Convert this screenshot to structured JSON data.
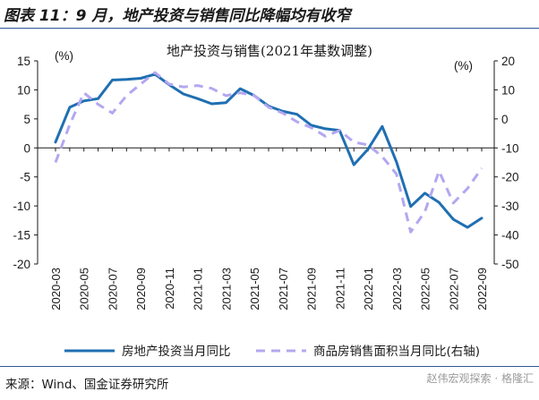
{
  "figure": {
    "title": "图表 11：9 月，地产投资与销售同比降幅均有收窄",
    "source": "来源：Wind、国金证券研究所",
    "watermark": "赵伟宏观探索 · 格隆汇"
  },
  "colors": {
    "series_investment": "#1f6fb2",
    "series_sales": "#b4a7f0",
    "rule": "#2f5597",
    "axis": "#1a1a1a"
  },
  "chart_data": {
    "type": "line",
    "title": "地产投资与销售(2021年基数调整)",
    "left_unit": "(%)",
    "right_unit": "(%)",
    "ylim_left": [
      -20,
      15
    ],
    "ylim_right": [
      -50,
      20
    ],
    "yticks_left": [
      15,
      10,
      5,
      0,
      -5,
      -10,
      -15,
      -20
    ],
    "yticks_right": [
      20,
      10,
      0,
      -10,
      -20,
      -30,
      -40,
      -50
    ],
    "grid": false,
    "legend_position": "bottom",
    "x": [
      "2020-03",
      "2020-04",
      "2020-05",
      "2020-06",
      "2020-07",
      "2020-08",
      "2020-09",
      "2020-10",
      "2020-11",
      "2020-12",
      "2021-01",
      "2021-02",
      "2021-03",
      "2021-04",
      "2021-05",
      "2021-06",
      "2021-07",
      "2021-08",
      "2021-09",
      "2021-10",
      "2021-11",
      "2021-12",
      "2022-01",
      "2022-02",
      "2022-03",
      "2022-04",
      "2022-05",
      "2022-06",
      "2022-07",
      "2022-08",
      "2022-09"
    ],
    "xtick_labels": [
      "2020-03",
      "2020-05",
      "2020-07",
      "2020-09",
      "2020-11",
      "2021-01",
      "2021-03",
      "2021-05",
      "2021-07",
      "2021-09",
      "2021-11",
      "2022-01",
      "2022-03",
      "2022-05",
      "2022-07",
      "2022-09"
    ],
    "series": [
      {
        "name": "房地产投资当月同比",
        "axis": "left",
        "style": "solid",
        "values": [
          1.0,
          7.0,
          8.1,
          8.5,
          11.7,
          11.8,
          12.0,
          12.7,
          10.9,
          9.3,
          8.5,
          7.6,
          7.8,
          10.2,
          9.0,
          7.2,
          6.3,
          5.8,
          3.9,
          3.3,
          3.0,
          -2.9,
          -0.2,
          3.7,
          -2.4,
          -10.1,
          -7.8,
          -9.4,
          -12.3,
          -13.7,
          -12.1
        ]
      },
      {
        "name": "商品房销售面积当月同比(右轴)",
        "axis": "right",
        "style": "dashed",
        "values": [
          -15.0,
          -2.0,
          9.0,
          5.0,
          2.0,
          8.0,
          12.0,
          16.0,
          12.0,
          11.0,
          11.5,
          10.5,
          8.0,
          9.0,
          8.0,
          4.0,
          2.0,
          -1.0,
          -3.0,
          -6.0,
          -4.0,
          -8.0,
          -9.0,
          -13.0,
          -19.0,
          -39.0,
          -32.0,
          -18.0,
          -29.0,
          -24.0,
          -17.0
        ]
      }
    ]
  }
}
